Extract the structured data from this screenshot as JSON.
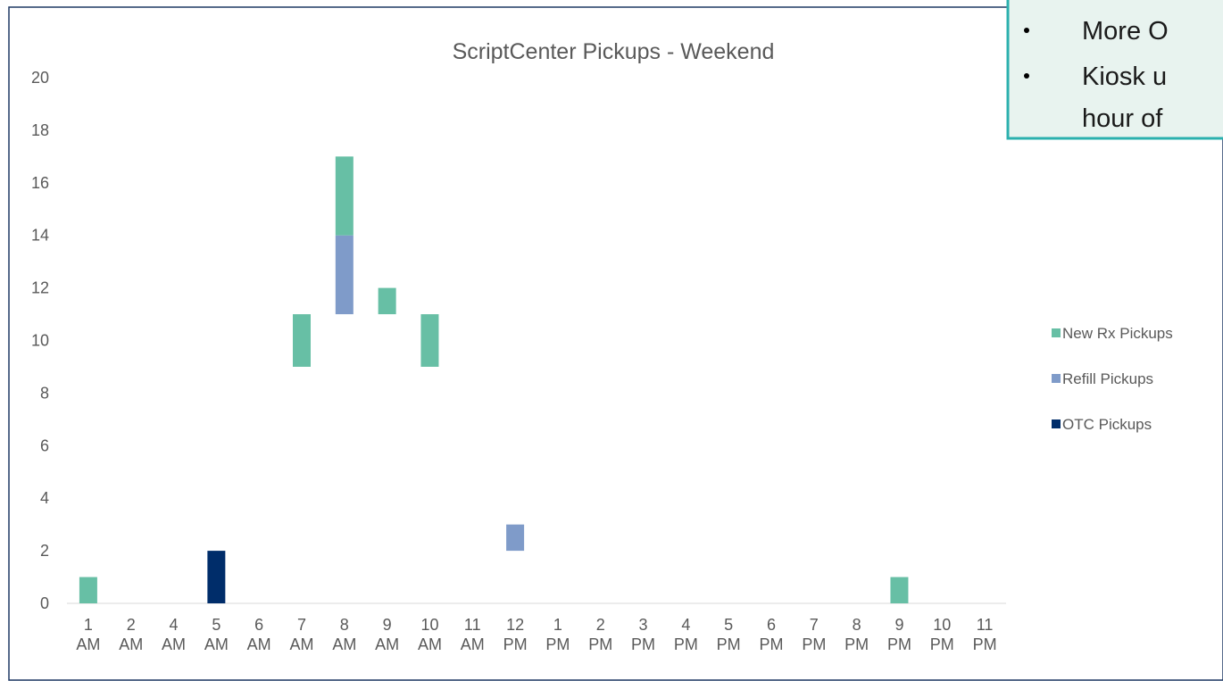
{
  "chart_data": {
    "type": "bar",
    "stacked": true,
    "title": "ScriptCenter Pickups - Weekend",
    "categories": [
      "1 AM",
      "2 AM",
      "4 AM",
      "5 AM",
      "6 AM",
      "7 AM",
      "8 AM",
      "9 AM",
      "10 AM",
      "11 AM",
      "12 PM",
      "1 PM",
      "2 PM",
      "3 PM",
      "4 PM",
      "5 PM",
      "6 PM",
      "7 PM",
      "8 PM",
      "9 PM",
      "10 PM",
      "11 PM"
    ],
    "series": [
      {
        "color": "transparent",
        "values": [
          0,
          0,
          0,
          0,
          0,
          9,
          11,
          11,
          9,
          0,
          2,
          0,
          0,
          0,
          0,
          0,
          0,
          0,
          0,
          0,
          0,
          0
        ]
      },
      {
        "name": "OTC Pickups",
        "color": "#002d6a",
        "values": [
          0,
          0,
          0,
          2,
          0,
          0,
          0,
          0,
          0,
          0,
          0,
          0,
          0,
          0,
          0,
          0,
          0,
          0,
          0,
          0,
          0,
          0
        ]
      },
      {
        "name": "Refill Pickups",
        "color": "#7f9bc9",
        "values": [
          0,
          0,
          0,
          0,
          0,
          0,
          3,
          0,
          0,
          0,
          1,
          0,
          0,
          0,
          0,
          0,
          0,
          0,
          0,
          0,
          0,
          0
        ]
      },
      {
        "name": "New Rx Pickups",
        "color": "#67bfa5",
        "values": [
          1,
          0,
          0,
          0,
          0,
          2,
          3,
          1,
          2,
          0,
          0,
          0,
          0,
          0,
          0,
          0,
          0,
          0,
          0,
          1,
          0,
          0
        ]
      }
    ],
    "ylim": [
      0,
      20
    ],
    "yticks": [
      0,
      2,
      4,
      6,
      8,
      10,
      12,
      14,
      16,
      18,
      20
    ],
    "grid": false
  },
  "callout": {
    "lines": [
      "More O",
      "Kiosk u",
      "hour of"
    ]
  }
}
